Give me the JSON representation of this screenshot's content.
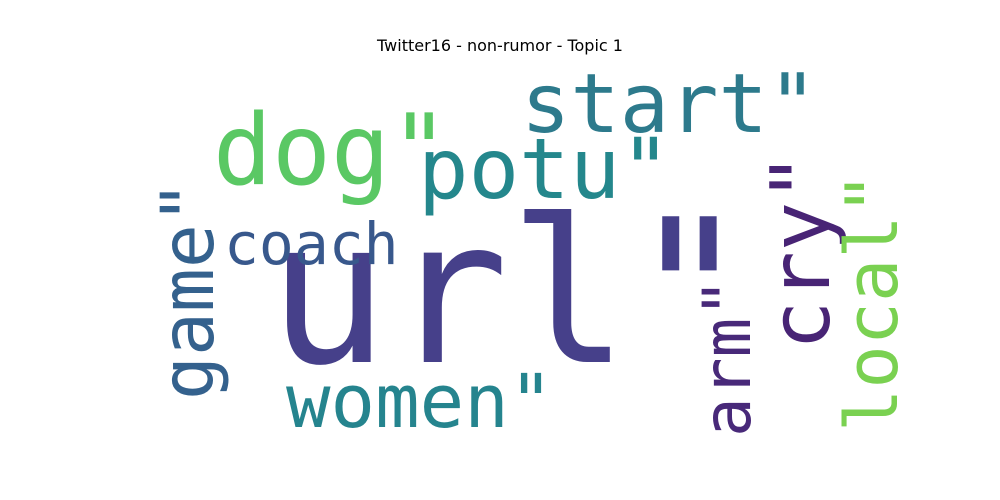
{
  "chart_data": {
    "type": "wordcloud",
    "title": "Twitter16 - non-rumor - Topic 1",
    "words": [
      {
        "text": "url\"",
        "weight": 100,
        "color": "#46408a",
        "orientation": "horizontal"
      },
      {
        "text": "start\"",
        "weight": 50,
        "color": "#2d7a8c",
        "orientation": "horizontal"
      },
      {
        "text": "dog\"",
        "weight": 62,
        "color": "#5ac864",
        "orientation": "horizontal"
      },
      {
        "text": "potu\"",
        "weight": 53,
        "color": "#24878c",
        "orientation": "horizontal"
      },
      {
        "text": "game\"",
        "weight": 44,
        "color": "#34618d",
        "orientation": "vertical"
      },
      {
        "text": "coach",
        "weight": 34,
        "color": "#38588c",
        "orientation": "horizontal"
      },
      {
        "text": "women\"",
        "weight": 45,
        "color": "#25848e",
        "orientation": "horizontal"
      },
      {
        "text": "arm\"",
        "weight": 41,
        "color": "#482979",
        "orientation": "vertical"
      },
      {
        "text": "cry\"",
        "weight": 50,
        "color": "#482475",
        "orientation": "vertical"
      },
      {
        "text": "local\"",
        "weight": 43,
        "color": "#7ad151",
        "orientation": "vertical"
      }
    ]
  }
}
